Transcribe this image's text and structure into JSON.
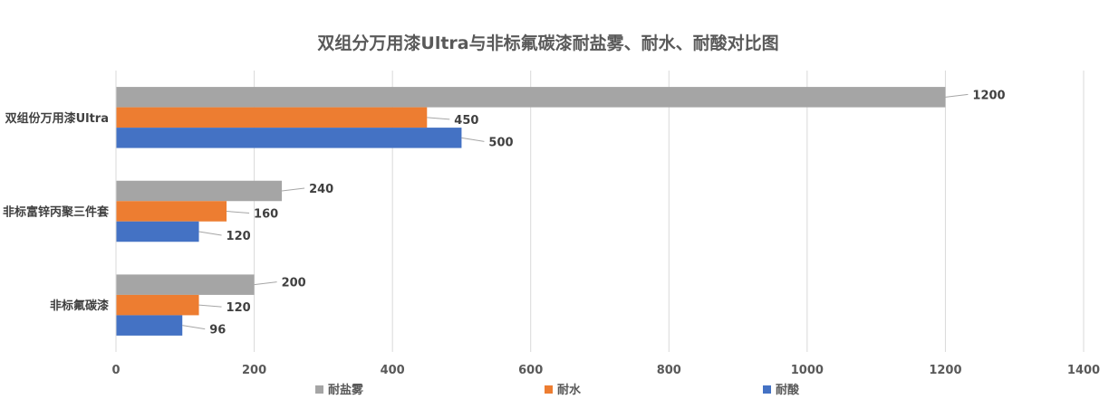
{
  "chart_data": {
    "type": "bar",
    "orientation": "horizontal",
    "title": "双组分万用漆Ultra与非标氟碳漆耐盐雾、耐水、耐酸对比图",
    "categories": [
      "双组份万用漆Ultra",
      "非标富锌丙聚三件套",
      "非标氟碳漆"
    ],
    "series": [
      {
        "name": "耐盐雾",
        "color": "#A5A5A5",
        "values": [
          1200,
          240,
          200
        ]
      },
      {
        "name": "耐水",
        "color": "#ED7D31",
        "values": [
          450,
          160,
          120
        ]
      },
      {
        "name": "耐酸",
        "color": "#4472C4",
        "values": [
          500,
          120,
          96
        ]
      }
    ],
    "xlim": [
      0,
      1400
    ],
    "x_ticks": [
      0,
      200,
      400,
      600,
      800,
      1000,
      1200,
      1400
    ],
    "grid": true,
    "legend_position": "bottom",
    "data_labels": true
  }
}
